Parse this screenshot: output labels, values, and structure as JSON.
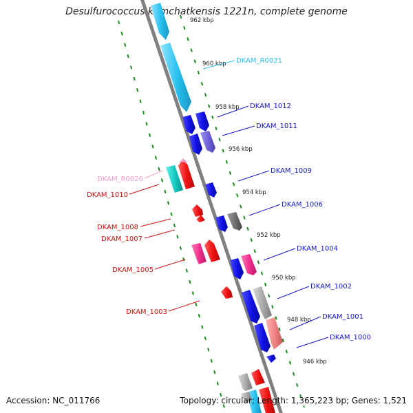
{
  "title": "Desulfurococcus kamchatkensis 1221n, complete genome",
  "footer": {
    "accession": "Accession: NC_011766",
    "summary": "Topology: circular; Length: 1,365,223 bp; Genes: 1,521"
  },
  "colors": {
    "backbone": "#808080",
    "tick_marks": "#1a8a1a",
    "trna": "#29c1f0",
    "forward_cds": "#1010e6",
    "reverse_cds": "#ee1111",
    "pseudo": "#9a9a9a",
    "label_forward": "#1414cc",
    "label_reverse": "#cc1111",
    "label_trna": "#29c1f0",
    "label_rrna": "#f29bc8"
  },
  "kbp_ticks": [
    {
      "label": "962 kbp"
    },
    {
      "label": "960 kbp"
    },
    {
      "label": "958 kbp"
    },
    {
      "label": "956 kbp"
    },
    {
      "label": "954 kbp"
    },
    {
      "label": "952 kbp"
    },
    {
      "label": "950 kbp"
    },
    {
      "label": "948 kbp"
    },
    {
      "label": "946 kbp"
    }
  ],
  "gene_labels_right": [
    {
      "name": "DKAM_R0021",
      "color": "#29c1f0"
    },
    {
      "name": "DKAM_1012",
      "color": "#1414cc"
    },
    {
      "name": "DKAM_1011",
      "color": "#1414cc"
    },
    {
      "name": "DKAM_1009",
      "color": "#1414cc"
    },
    {
      "name": "DKAM_1006",
      "color": "#1414cc"
    },
    {
      "name": "DKAM_1004",
      "color": "#1414cc"
    },
    {
      "name": "DKAM_1002",
      "color": "#1414cc"
    },
    {
      "name": "DKAM_1001",
      "color": "#1414cc"
    },
    {
      "name": "DKAM_1000",
      "color": "#1414cc"
    }
  ],
  "gene_labels_left": [
    {
      "name": "DKAM_R0020",
      "color": "#f29bc8"
    },
    {
      "name": "DKAM_1010",
      "color": "#cc1111"
    },
    {
      "name": "DKAM_1008",
      "color": "#cc1111"
    },
    {
      "name": "DKAM_1007",
      "color": "#cc1111"
    },
    {
      "name": "DKAM_1005",
      "color": "#cc1111"
    },
    {
      "name": "DKAM_1003",
      "color": "#cc1111"
    }
  ]
}
